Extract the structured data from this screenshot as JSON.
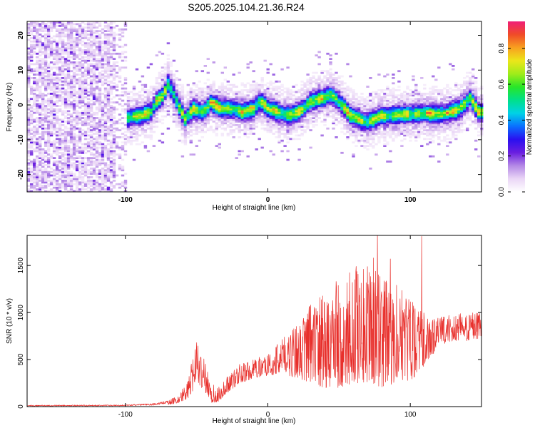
{
  "title": "S205.2025.104.21.36.R24",
  "chart_data": [
    {
      "type": "heatmap",
      "xlabel": "Height of straight line (km)",
      "ylabel": "Frequency (Hz)",
      "xlim": [
        -169,
        150
      ],
      "ylim": [
        -25,
        24
      ],
      "x_ticks": [
        -100,
        0,
        100
      ],
      "y_ticks": [
        -20,
        -10,
        0,
        10,
        20
      ],
      "colorbar": {
        "label": "Normalized spectral amplitude",
        "range": [
          0,
          0.95
        ],
        "ticks": [
          0.0,
          0.2,
          0.4,
          0.6,
          0.8
        ],
        "colors": [
          "#ffffff",
          "#ead6f6",
          "#b488e6",
          "#6a1ee0",
          "#2a10f0",
          "#0a70ff",
          "#00d2e6",
          "#00e08a",
          "#28e628",
          "#a0ec1a",
          "#ece61a",
          "#f8a020",
          "#f04b28",
          "#f01e78"
        ]
      },
      "ridge": [
        {
          "x": -100,
          "y": -4
        },
        {
          "x": -90,
          "y": -3
        },
        {
          "x": -82,
          "y": -2
        },
        {
          "x": -78,
          "y": 1
        },
        {
          "x": -73,
          "y": 3
        },
        {
          "x": -70,
          "y": 6
        },
        {
          "x": -67,
          "y": 4
        },
        {
          "x": -63,
          "y": 0
        },
        {
          "x": -58,
          "y": -4
        },
        {
          "x": -52,
          "y": -1
        },
        {
          "x": -45,
          "y": -2
        },
        {
          "x": -40,
          "y": 0.5
        },
        {
          "x": -32,
          "y": -1
        },
        {
          "x": -25,
          "y": -1
        },
        {
          "x": -18,
          "y": -2
        },
        {
          "x": -10,
          "y": -1
        },
        {
          "x": -5,
          "y": 1
        },
        {
          "x": 0,
          "y": -1
        },
        {
          "x": 8,
          "y": -2
        },
        {
          "x": 15,
          "y": -3
        },
        {
          "x": 22,
          "y": -2
        },
        {
          "x": 30,
          "y": 1
        },
        {
          "x": 38,
          "y": 2
        },
        {
          "x": 45,
          "y": 3
        },
        {
          "x": 52,
          "y": 0
        },
        {
          "x": 58,
          "y": -3
        },
        {
          "x": 64,
          "y": -4
        },
        {
          "x": 70,
          "y": -5
        },
        {
          "x": 80,
          "y": -3
        },
        {
          "x": 90,
          "y": -3
        },
        {
          "x": 100,
          "y": -2.5
        },
        {
          "x": 112,
          "y": -2.5
        },
        {
          "x": 125,
          "y": -2.5
        },
        {
          "x": 135,
          "y": -1
        },
        {
          "x": 142,
          "y": 2
        },
        {
          "x": 148,
          "y": -2
        }
      ],
      "hot_spots": [
        {
          "x": -40,
          "y": 0.5,
          "v": 0.9
        },
        {
          "x": -12,
          "y": -1,
          "v": 0.85
        },
        {
          "x": 112,
          "y": -2.5,
          "v": 0.95
        },
        {
          "x": 125,
          "y": -2.5,
          "v": 0.9
        }
      ]
    },
    {
      "type": "line",
      "xlabel": "Height of straight line (km)",
      "ylabel": "SNR (10 * v/v)",
      "xlim": [
        -169,
        150
      ],
      "ylim": [
        0,
        1820
      ],
      "x_ticks": [
        -100,
        0,
        100
      ],
      "y_ticks": [
        0,
        500,
        1000,
        1500
      ],
      "series_color": "#e8302c",
      "envelope": [
        {
          "x": -169,
          "low": 0,
          "high": 15
        },
        {
          "x": -100,
          "low": 0,
          "high": 20
        },
        {
          "x": -80,
          "low": 5,
          "high": 35
        },
        {
          "x": -70,
          "low": 20,
          "high": 70
        },
        {
          "x": -62,
          "low": 40,
          "high": 120
        },
        {
          "x": -55,
          "low": 100,
          "high": 380
        },
        {
          "x": -50,
          "low": 250,
          "high": 680
        },
        {
          "x": -45,
          "low": 180,
          "high": 520
        },
        {
          "x": -40,
          "low": 40,
          "high": 260
        },
        {
          "x": -35,
          "low": 50,
          "high": 200
        },
        {
          "x": -28,
          "low": 150,
          "high": 330
        },
        {
          "x": -20,
          "low": 250,
          "high": 450
        },
        {
          "x": -10,
          "low": 300,
          "high": 520
        },
        {
          "x": 0,
          "low": 330,
          "high": 580
        },
        {
          "x": 10,
          "low": 350,
          "high": 720
        },
        {
          "x": 20,
          "low": 300,
          "high": 900
        },
        {
          "x": 30,
          "low": 250,
          "high": 1100
        },
        {
          "x": 40,
          "low": 200,
          "high": 1250
        },
        {
          "x": 50,
          "low": 200,
          "high": 1350
        },
        {
          "x": 60,
          "low": 250,
          "high": 1450
        },
        {
          "x": 70,
          "low": 250,
          "high": 1500
        },
        {
          "x": 80,
          "low": 200,
          "high": 1450
        },
        {
          "x": 90,
          "low": 250,
          "high": 1300
        },
        {
          "x": 100,
          "low": 280,
          "high": 1150
        },
        {
          "x": 110,
          "low": 400,
          "high": 1000
        },
        {
          "x": 120,
          "low": 650,
          "high": 950
        },
        {
          "x": 130,
          "low": 700,
          "high": 980
        },
        {
          "x": 140,
          "low": 700,
          "high": 1000
        },
        {
          "x": 150,
          "low": 720,
          "high": 1000
        }
      ],
      "peaks": [
        {
          "x": -50,
          "y": 680
        },
        {
          "x": 30,
          "y": 1080
        },
        {
          "x": 48,
          "y": 1330
        },
        {
          "x": 62,
          "y": 1490
        },
        {
          "x": 74,
          "y": 1580
        },
        {
          "x": 77,
          "y": 1820
        },
        {
          "x": 86,
          "y": 1570
        },
        {
          "x": 108,
          "y": 1810
        }
      ]
    }
  ]
}
